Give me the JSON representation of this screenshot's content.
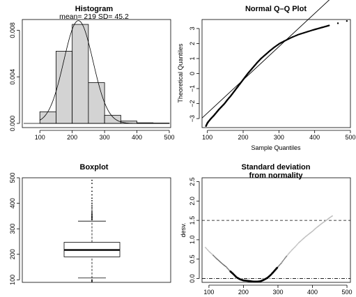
{
  "chart_data": [
    {
      "type": "bar",
      "title": "Histogram",
      "subtitle": "mean= 219  SD= 45.2",
      "xlabel": "",
      "ylabel": "",
      "xlim": [
        50,
        500
      ],
      "ylim": [
        0,
        0.0088
      ],
      "x_ticks": [
        "100",
        "200",
        "300",
        "400",
        "500"
      ],
      "y_ticks": [
        "0.000",
        "0.004",
        "0.008"
      ],
      "bins": [
        {
          "from": 100,
          "to": 150,
          "density": 0.001
        },
        {
          "from": 150,
          "to": 200,
          "density": 0.0062
        },
        {
          "from": 200,
          "to": 250,
          "density": 0.0085
        },
        {
          "from": 250,
          "to": 300,
          "density": 0.0035
        },
        {
          "from": 300,
          "to": 350,
          "density": 0.0007
        },
        {
          "from": 350,
          "to": 400,
          "density": 0.0002
        },
        {
          "from": 400,
          "to": 450,
          "density": 5e-05
        },
        {
          "from": 450,
          "to": 500,
          "density": 3e-05
        }
      ],
      "density_curve": {
        "mean": 219,
        "sd": 45.2
      },
      "bar_color": "#d3d3d3"
    },
    {
      "type": "scatter",
      "title": "Normal Q–Q Plot",
      "xlabel": "Sample Quantiles",
      "ylabel": "Theoretical Quantiles",
      "xlim": [
        85,
        500
      ],
      "ylim": [
        -3.6,
        3.6
      ],
      "x_ticks": [
        "100",
        "200",
        "300",
        "400",
        "500"
      ],
      "y_ticks": [
        "−3",
        "−2",
        "−1",
        "0",
        "1",
        "2",
        "3"
      ],
      "reference_line": {
        "mean": 219,
        "sd": 45.2
      },
      "points": [
        [
          96,
          -3.5
        ],
        [
          100,
          -3.3
        ],
        [
          103,
          -3.2
        ],
        [
          110,
          -3.0
        ],
        [
          118,
          -2.8
        ],
        [
          125,
          -2.6
        ],
        [
          132,
          -2.4
        ],
        [
          140,
          -2.2
        ],
        [
          148,
          -2.0
        ],
        [
          156,
          -1.75
        ],
        [
          165,
          -1.5
        ],
        [
          173,
          -1.25
        ],
        [
          181,
          -1.0
        ],
        [
          189,
          -0.75
        ],
        [
          197,
          -0.5
        ],
        [
          205,
          -0.25
        ],
        [
          213,
          0.0
        ],
        [
          222,
          0.25
        ],
        [
          231,
          0.5
        ],
        [
          240,
          0.75
        ],
        [
          250,
          1.0
        ],
        [
          262,
          1.25
        ],
        [
          274,
          1.5
        ],
        [
          287,
          1.75
        ],
        [
          302,
          2.0
        ],
        [
          318,
          2.2
        ],
        [
          335,
          2.4
        ],
        [
          355,
          2.6
        ],
        [
          375,
          2.75
        ],
        [
          395,
          2.9
        ],
        [
          410,
          3.0
        ],
        [
          425,
          3.1
        ],
        [
          440,
          3.2
        ],
        [
          490,
          3.5
        ]
      ],
      "line_color": "#000000"
    },
    {
      "type": "box",
      "title": "Boxplot",
      "xlabel": "",
      "ylabel": "",
      "ylim": [
        90,
        500
      ],
      "y_ticks": [
        "100",
        "200",
        "300",
        "400",
        "500"
      ],
      "whisker_low": 107,
      "q1": 190,
      "median": 217,
      "q3": 247,
      "whisker_high": 330,
      "outliers": [
        93,
        96,
        100,
        335,
        338,
        342,
        345,
        348,
        352,
        356,
        360,
        365,
        370,
        378,
        385,
        392,
        400,
        410,
        420,
        433,
        447,
        462,
        478,
        490
      ]
    },
    {
      "type": "line",
      "title": "Standard deviation from normality",
      "title_lines": [
        "Standard deviation",
        "from normality"
      ],
      "xlabel": "",
      "ylabel": "desv.",
      "xlim": [
        80,
        510
      ],
      "ylim": [
        -0.1,
        2.6
      ],
      "x_ticks": [
        "100",
        "200",
        "300",
        "400",
        "500"
      ],
      "y_ticks": [
        "0.0",
        "0.5",
        "1.0",
        "1.5",
        "2.0",
        "2.5"
      ],
      "hlines": [
        {
          "y": 1.5,
          "style": "dashed"
        },
        {
          "y": 0.0,
          "style": "dashdot"
        }
      ],
      "x": [
        90,
        100,
        110,
        120,
        130,
        140,
        150,
        160,
        170,
        180,
        190,
        200,
        210,
        220,
        230,
        240,
        250,
        260,
        270,
        280,
        290,
        300,
        310,
        320,
        330,
        340,
        350,
        360,
        370,
        380,
        390,
        400,
        410,
        420,
        430,
        440,
        450,
        460
      ],
      "y": [
        0.8,
        0.7,
        0.62,
        0.53,
        0.45,
        0.37,
        0.3,
        0.2,
        0.12,
        0.03,
        -0.02,
        -0.05,
        -0.06,
        -0.07,
        -0.08,
        -0.08,
        -0.07,
        -0.03,
        0.02,
        0.1,
        0.2,
        0.3,
        0.4,
        0.52,
        0.63,
        0.73,
        0.82,
        0.92,
        1.0,
        1.08,
        1.15,
        1.22,
        1.3,
        1.37,
        1.44,
        1.5,
        1.57,
        1.63
      ]
    }
  ]
}
